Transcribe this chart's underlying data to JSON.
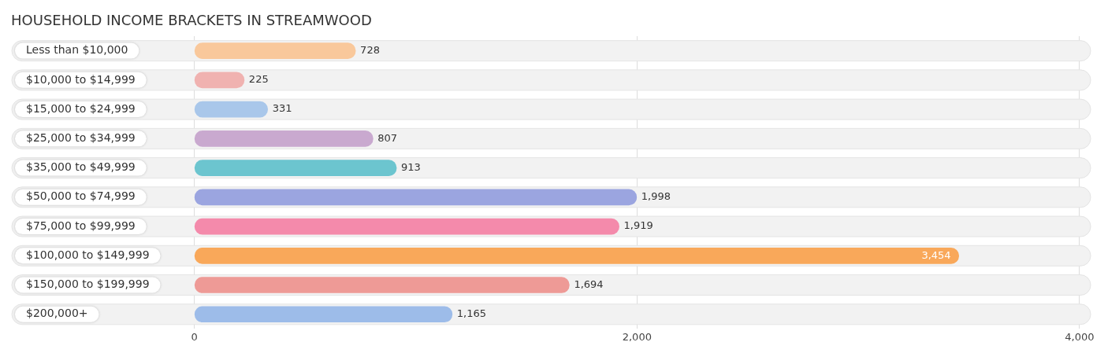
{
  "chart_data": {
    "type": "bar",
    "orientation": "horizontal",
    "title": "HOUSEHOLD INCOME BRACKETS IN STREAMWOOD",
    "categories": [
      "Less than $10,000",
      "$10,000 to $14,999",
      "$15,000 to $24,999",
      "$25,000 to $34,999",
      "$35,000 to $49,999",
      "$50,000 to $74,999",
      "$75,000 to $99,999",
      "$100,000 to $149,999",
      "$150,000 to $199,999",
      "$200,000+"
    ],
    "values": [
      728,
      225,
      331,
      807,
      913,
      1998,
      1919,
      3454,
      1694,
      1165
    ],
    "colors": [
      "#f9c89b",
      "#f0b2b0",
      "#a9c7ea",
      "#c9a9cf",
      "#6cc5cf",
      "#9ba5e0",
      "#f48aab",
      "#f9a85a",
      "#ee9a96",
      "#9dbce9"
    ],
    "value_labels": [
      "728",
      "225",
      "331",
      "807",
      "913",
      "1,998",
      "1,919",
      "3,454",
      "1,694",
      "1,165"
    ],
    "xlim": [
      -825,
      4050
    ],
    "xticks": [
      0,
      {
        "value": 2000,
        "label": "2,000"
      },
      {
        "value": 4000,
        "label": "4,000"
      }
    ],
    "grid": "x",
    "legend": false
  }
}
